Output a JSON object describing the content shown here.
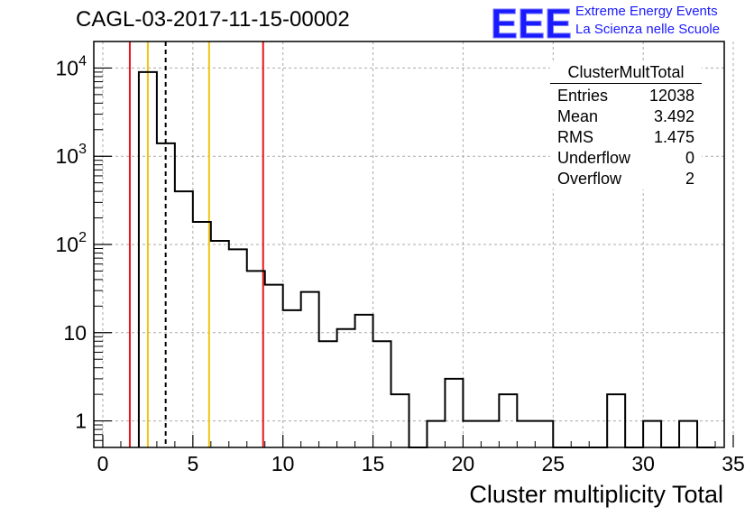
{
  "title": "CAGL-03-2017-11-15-00002",
  "logo": {
    "mark": "EEE",
    "line1": "Extreme Energy Events",
    "line2": "La Scienza nelle Scuole",
    "color": "#1a1aff"
  },
  "stats": {
    "name": "ClusterMultTotal",
    "rows": [
      {
        "label": "Entries",
        "value": "12038"
      },
      {
        "label": "Mean",
        "value": "3.492"
      },
      {
        "label": "RMS",
        "value": "1.475"
      },
      {
        "label": "Underflow",
        "value": "0"
      },
      {
        "label": "Overflow",
        "value": "2"
      }
    ]
  },
  "chart_data": {
    "type": "histogram",
    "title": "CAGL-03-2017-11-15-00002",
    "xlabel": "Cluster multiplicity Total",
    "ylabel": "",
    "xlim": [
      -0.5,
      34.5
    ],
    "ylim": [
      0.5,
      20000
    ],
    "yscale": "log",
    "grid": true,
    "bin_width": 1,
    "bins": [
      {
        "x": 2.5,
        "count": 9000
      },
      {
        "x": 3.5,
        "count": 1400
      },
      {
        "x": 4.5,
        "count": 400
      },
      {
        "x": 5.5,
        "count": 180
      },
      {
        "x": 6.5,
        "count": 110
      },
      {
        "x": 7.5,
        "count": 88
      },
      {
        "x": 8.5,
        "count": 50
      },
      {
        "x": 9.5,
        "count": 35
      },
      {
        "x": 10.5,
        "count": 18
      },
      {
        "x": 11.5,
        "count": 29
      },
      {
        "x": 12.5,
        "count": 8
      },
      {
        "x": 13.5,
        "count": 11
      },
      {
        "x": 14.5,
        "count": 16
      },
      {
        "x": 15.5,
        "count": 8
      },
      {
        "x": 16.5,
        "count": 2
      },
      {
        "x": 17.5,
        "count": 0
      },
      {
        "x": 18.5,
        "count": 1
      },
      {
        "x": 19.5,
        "count": 3
      },
      {
        "x": 20.5,
        "count": 1
      },
      {
        "x": 21.5,
        "count": 1
      },
      {
        "x": 22.5,
        "count": 2
      },
      {
        "x": 23.5,
        "count": 1
      },
      {
        "x": 24.5,
        "count": 1
      },
      {
        "x": 25.5,
        "count": 0
      },
      {
        "x": 26.5,
        "count": 0
      },
      {
        "x": 27.5,
        "count": 0
      },
      {
        "x": 28.5,
        "count": 2
      },
      {
        "x": 29.5,
        "count": 0
      },
      {
        "x": 30.5,
        "count": 1
      },
      {
        "x": 31.5,
        "count": 0
      },
      {
        "x": 32.5,
        "count": 1
      },
      {
        "x": 33.5,
        "count": 0
      }
    ],
    "x_ticks": [
      0,
      5,
      10,
      15,
      20,
      25,
      30,
      35
    ],
    "y_ticks": [
      {
        "value": 1,
        "label": "1"
      },
      {
        "value": 10,
        "label": "10"
      },
      {
        "value": 100,
        "label": "10^2"
      },
      {
        "value": 1000,
        "label": "10^3"
      },
      {
        "value": 10000,
        "label": "10^4"
      }
    ],
    "vertical_lines": [
      {
        "x": 1.5,
        "color": "#e8151b",
        "style": "solid"
      },
      {
        "x": 2.5,
        "color": "#f2c30f",
        "style": "solid"
      },
      {
        "x": 3.49,
        "color": "#000000",
        "style": "dashed"
      },
      {
        "x": 5.9,
        "color": "#f2c30f",
        "style": "solid"
      },
      {
        "x": 8.9,
        "color": "#e8151b",
        "style": "solid"
      }
    ]
  }
}
